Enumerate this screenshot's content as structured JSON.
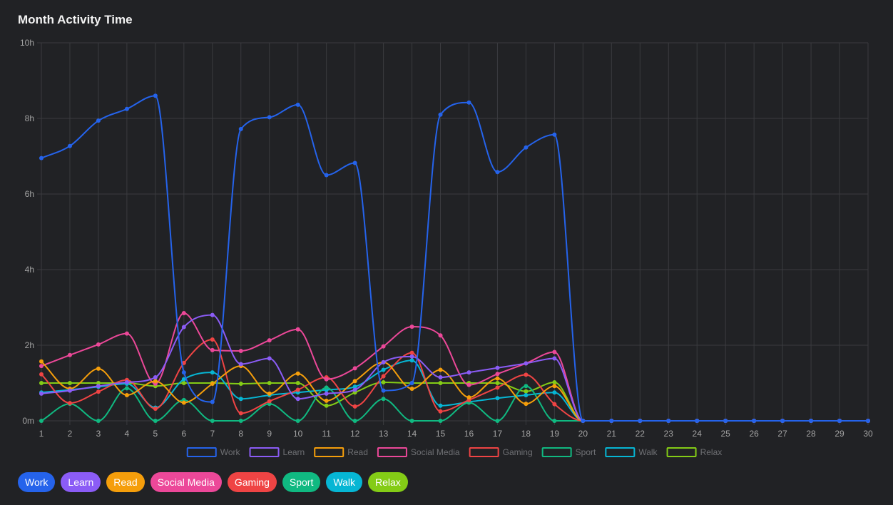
{
  "page": {
    "title": "Month Activity Time"
  },
  "chart_data": {
    "type": "line",
    "title": "Month Activity Time",
    "x": [
      1,
      2,
      3,
      4,
      5,
      6,
      7,
      8,
      9,
      10,
      11,
      12,
      13,
      14,
      15,
      16,
      17,
      18,
      19,
      20,
      21,
      22,
      23,
      24,
      25,
      26,
      27,
      28,
      29,
      30
    ],
    "ylim": [
      0,
      10
    ],
    "y_ticks": [
      {
        "value": 0,
        "label": "0m"
      },
      {
        "value": 2,
        "label": "2h"
      },
      {
        "value": 4,
        "label": "4h"
      },
      {
        "value": 6,
        "label": "6h"
      },
      {
        "value": 8,
        "label": "8h"
      },
      {
        "value": 10,
        "label": "10h"
      }
    ],
    "grid": true,
    "legend_position": "bottom",
    "series": [
      {
        "name": "Work",
        "color": "#2563eb",
        "values": [
          6.95,
          7.27,
          7.94,
          8.25,
          8.6,
          1.28,
          0.5,
          7.72,
          8.03,
          8.36,
          6.5,
          6.82,
          0.8,
          1.0,
          8.1,
          8.42,
          6.58,
          7.23,
          7.57,
          0,
          0,
          0,
          0,
          0,
          0,
          0,
          0,
          0,
          0,
          0
        ]
      },
      {
        "name": "Learn",
        "color": "#8b5cf6",
        "values": [
          0.72,
          0.8,
          0.92,
          1.02,
          1.15,
          2.48,
          2.8,
          1.5,
          1.65,
          0.58,
          0.72,
          0.82,
          1.55,
          1.7,
          1.15,
          1.28,
          1.4,
          1.52,
          1.65,
          0,
          0,
          0,
          0,
          0,
          0,
          0,
          0,
          0,
          0,
          0
        ]
      },
      {
        "name": "Read",
        "color": "#f59e0b",
        "values": [
          1.57,
          0.85,
          1.38,
          0.68,
          1.05,
          0.48,
          0.98,
          1.45,
          0.72,
          1.25,
          0.53,
          1.05,
          1.55,
          0.85,
          1.35,
          0.62,
          1.12,
          0.45,
          0.92,
          0,
          0,
          0,
          0,
          0,
          0,
          0,
          0,
          0,
          0,
          0
        ]
      },
      {
        "name": "Social Media",
        "color": "#ec4899",
        "values": [
          1.45,
          1.74,
          2.02,
          2.31,
          0.98,
          2.85,
          1.87,
          1.85,
          2.13,
          2.42,
          1.1,
          1.39,
          1.97,
          2.49,
          2.26,
          0.95,
          1.24,
          1.52,
          1.82,
          0,
          0,
          0,
          0,
          0,
          0,
          0,
          0,
          0,
          0,
          0
        ]
      },
      {
        "name": "Gaming",
        "color": "#ef4444",
        "values": [
          1.23,
          0.47,
          0.77,
          1.08,
          0.32,
          1.53,
          2.15,
          0.2,
          0.52,
          0.82,
          1.15,
          0.38,
          1.18,
          1.8,
          0.25,
          0.55,
          0.88,
          1.22,
          0.44,
          0,
          0,
          0,
          0,
          0,
          0,
          0,
          0,
          0,
          0,
          0
        ]
      },
      {
        "name": "Sport",
        "color": "#10b981",
        "values": [
          0,
          0.45,
          0,
          0.86,
          0,
          0.55,
          0,
          0,
          0.45,
          0,
          0.88,
          0,
          0.58,
          0,
          0,
          0.48,
          0,
          0.92,
          0,
          0,
          0,
          0,
          0,
          0,
          0,
          0,
          0,
          0,
          0,
          0
        ]
      },
      {
        "name": "Walk",
        "color": "#06b6d4",
        "values": [
          0.75,
          0.82,
          0.9,
          0.98,
          0.35,
          1.1,
          1.28,
          0.58,
          0.68,
          0.75,
          0.82,
          0.9,
          1.35,
          1.6,
          0.4,
          0.5,
          0.6,
          0.68,
          0.75,
          0,
          0,
          0,
          0,
          0,
          0,
          0,
          0,
          0,
          0,
          0
        ]
      },
      {
        "name": "Relax",
        "color": "#84cc16",
        "values": [
          1.0,
          1.0,
          1.0,
          1.0,
          0.92,
          1.0,
          1.0,
          0.98,
          1.0,
          1.0,
          0.4,
          0.75,
          1.02,
          1.0,
          1.0,
          1.0,
          1.0,
          0.78,
          1.02,
          0,
          0,
          0,
          0,
          0,
          0,
          0,
          0,
          0,
          0,
          0
        ]
      }
    ]
  },
  "filter_tags": [
    {
      "label": "Work",
      "color": "#2563eb"
    },
    {
      "label": "Learn",
      "color": "#8b5cf6"
    },
    {
      "label": "Read",
      "color": "#f59e0b"
    },
    {
      "label": "Social Media",
      "color": "#ec4899"
    },
    {
      "label": "Gaming",
      "color": "#ef4444"
    },
    {
      "label": "Sport",
      "color": "#10b981"
    },
    {
      "label": "Walk",
      "color": "#06b6d4"
    },
    {
      "label": "Relax",
      "color": "#84cc16"
    }
  ]
}
